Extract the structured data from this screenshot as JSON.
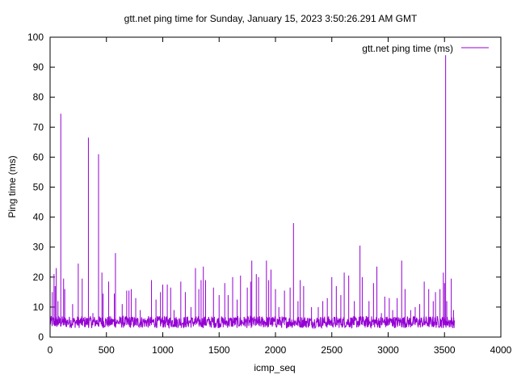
{
  "chart_data": {
    "type": "line",
    "title": "gtt.net ping time for Sunday, January 15, 2023 3:50:26.291 AM GMT",
    "xlabel": "icmp_seq",
    "ylabel": "Ping time (ms)",
    "xlim": [
      0,
      4000
    ],
    "ylim": [
      0,
      100
    ],
    "xticks": [
      0,
      500,
      1000,
      1500,
      2000,
      2500,
      3000,
      3500,
      4000
    ],
    "yticks": [
      0,
      10,
      20,
      30,
      40,
      50,
      60,
      70,
      80,
      90,
      100
    ],
    "grid": false,
    "legend_position": "top-right",
    "series": [
      {
        "name": "gtt.net ping time (ms)",
        "color": "#9400d3",
        "baseline_range": [
          3,
          7
        ],
        "x_range": [
          0,
          3590
        ],
        "spikes": [
          {
            "x": 20,
            "y": 15
          },
          {
            "x": 35,
            "y": 21
          },
          {
            "x": 45,
            "y": 17
          },
          {
            "x": 55,
            "y": 23
          },
          {
            "x": 70,
            "y": 12
          },
          {
            "x": 95,
            "y": 74.5
          },
          {
            "x": 120,
            "y": 19.5
          },
          {
            "x": 130,
            "y": 16
          },
          {
            "x": 200,
            "y": 11
          },
          {
            "x": 250,
            "y": 24.5
          },
          {
            "x": 285,
            "y": 19.5
          },
          {
            "x": 340,
            "y": 66.5
          },
          {
            "x": 380,
            "y": 8
          },
          {
            "x": 430,
            "y": 61
          },
          {
            "x": 460,
            "y": 21.5
          },
          {
            "x": 470,
            "y": 14.5
          },
          {
            "x": 520,
            "y": 18.5
          },
          {
            "x": 570,
            "y": 14.5
          },
          {
            "x": 580,
            "y": 28
          },
          {
            "x": 640,
            "y": 11
          },
          {
            "x": 680,
            "y": 15.5
          },
          {
            "x": 700,
            "y": 15.5
          },
          {
            "x": 720,
            "y": 16
          },
          {
            "x": 760,
            "y": 13
          },
          {
            "x": 800,
            "y": 9
          },
          {
            "x": 900,
            "y": 19
          },
          {
            "x": 940,
            "y": 12.5
          },
          {
            "x": 980,
            "y": 15
          },
          {
            "x": 1000,
            "y": 17.5
          },
          {
            "x": 1040,
            "y": 17.5
          },
          {
            "x": 1070,
            "y": 16.5
          },
          {
            "x": 1100,
            "y": 9
          },
          {
            "x": 1160,
            "y": 18.5
          },
          {
            "x": 1200,
            "y": 15
          },
          {
            "x": 1250,
            "y": 10
          },
          {
            "x": 1290,
            "y": 23
          },
          {
            "x": 1320,
            "y": 16
          },
          {
            "x": 1340,
            "y": 19
          },
          {
            "x": 1360,
            "y": 23.5
          },
          {
            "x": 1380,
            "y": 19
          },
          {
            "x": 1450,
            "y": 16.5
          },
          {
            "x": 1500,
            "y": 14
          },
          {
            "x": 1550,
            "y": 18
          },
          {
            "x": 1580,
            "y": 14
          },
          {
            "x": 1620,
            "y": 20
          },
          {
            "x": 1660,
            "y": 12.5
          },
          {
            "x": 1690,
            "y": 20.5
          },
          {
            "x": 1750,
            "y": 16.5
          },
          {
            "x": 1780,
            "y": 18.5
          },
          {
            "x": 1790,
            "y": 25.5
          },
          {
            "x": 1830,
            "y": 21
          },
          {
            "x": 1850,
            "y": 20
          },
          {
            "x": 1920,
            "y": 25.5
          },
          {
            "x": 1940,
            "y": 19
          },
          {
            "x": 1960,
            "y": 22.5
          },
          {
            "x": 2000,
            "y": 16
          },
          {
            "x": 2030,
            "y": 10
          },
          {
            "x": 2080,
            "y": 15.5
          },
          {
            "x": 2130,
            "y": 16.5
          },
          {
            "x": 2160,
            "y": 38
          },
          {
            "x": 2200,
            "y": 12
          },
          {
            "x": 2220,
            "y": 19
          },
          {
            "x": 2250,
            "y": 17
          },
          {
            "x": 2320,
            "y": 10
          },
          {
            "x": 2380,
            "y": 10
          },
          {
            "x": 2420,
            "y": 12
          },
          {
            "x": 2460,
            "y": 13
          },
          {
            "x": 2500,
            "y": 20
          },
          {
            "x": 2540,
            "y": 17
          },
          {
            "x": 2580,
            "y": 14
          },
          {
            "x": 2610,
            "y": 21.5
          },
          {
            "x": 2650,
            "y": 20.5
          },
          {
            "x": 2700,
            "y": 12
          },
          {
            "x": 2750,
            "y": 30.5
          },
          {
            "x": 2770,
            "y": 20
          },
          {
            "x": 2830,
            "y": 12
          },
          {
            "x": 2870,
            "y": 18
          },
          {
            "x": 2900,
            "y": 23.5
          },
          {
            "x": 2940,
            "y": 8
          },
          {
            "x": 2970,
            "y": 13.5
          },
          {
            "x": 3010,
            "y": 13
          },
          {
            "x": 3040,
            "y": 9
          },
          {
            "x": 3080,
            "y": 13
          },
          {
            "x": 3120,
            "y": 25.5
          },
          {
            "x": 3150,
            "y": 16
          },
          {
            "x": 3200,
            "y": 9
          },
          {
            "x": 3240,
            "y": 10
          },
          {
            "x": 3280,
            "y": 11
          },
          {
            "x": 3320,
            "y": 18.5
          },
          {
            "x": 3360,
            "y": 16
          },
          {
            "x": 3400,
            "y": 12
          },
          {
            "x": 3420,
            "y": 15
          },
          {
            "x": 3460,
            "y": 16
          },
          {
            "x": 3490,
            "y": 21.5
          },
          {
            "x": 3500,
            "y": 18
          },
          {
            "x": 3510,
            "y": 94
          },
          {
            "x": 3520,
            "y": 12
          },
          {
            "x": 3560,
            "y": 19.5
          },
          {
            "x": 3580,
            "y": 9
          }
        ]
      }
    ]
  }
}
